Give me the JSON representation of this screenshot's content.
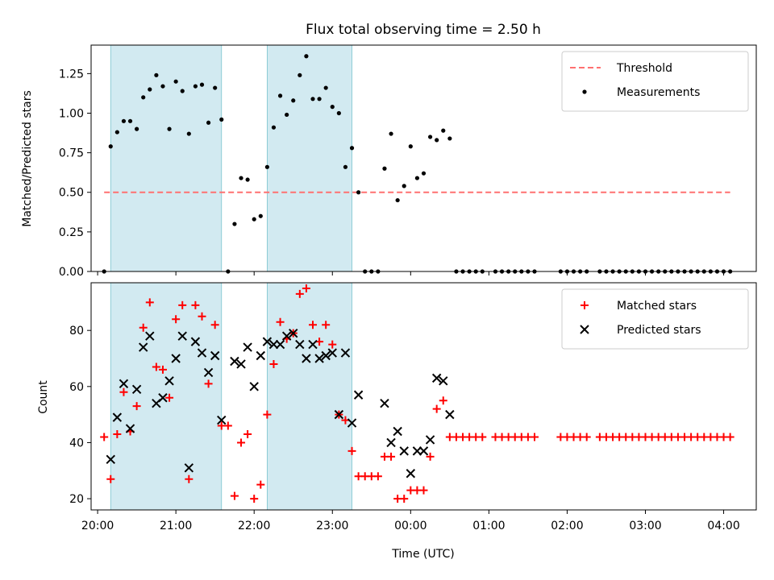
{
  "chart_data": {
    "title": "Flux total observing time = 2.50 h",
    "xlabel": "Time (UTC)",
    "x_ticks": [
      "20:00",
      "21:00",
      "22:00",
      "23:00",
      "00:00",
      "01:00",
      "02:00",
      "03:00",
      "04:00"
    ],
    "x_range": [
      "19:55",
      "04:25"
    ],
    "shaded_intervals": [
      [
        "20:10",
        "21:35"
      ],
      [
        "22:10",
        "23:15"
      ]
    ],
    "shade_color": "#add8e6",
    "panels": [
      {
        "type": "scatter",
        "ylabel": "Matched/Predicted stars",
        "ylim": [
          0,
          1.43
        ],
        "y_ticks": [
          "0.00",
          "0.25",
          "0.50",
          "0.75",
          "1.00",
          "1.25"
        ],
        "legend_position": "top-right",
        "threshold": {
          "name": "Threshold",
          "y": 0.5,
          "x": [
            "20:05",
            "04:05"
          ],
          "color": "#ff7070",
          "style": "dashed"
        },
        "series": [
          {
            "name": "Measurements",
            "marker": "dot",
            "color": "#000000",
            "points": [
              [
                "20:05",
                0.0
              ],
              [
                "20:10",
                0.79
              ],
              [
                "20:15",
                0.88
              ],
              [
                "20:20",
                0.95
              ],
              [
                "20:25",
                0.95
              ],
              [
                "20:30",
                0.9
              ],
              [
                "20:35",
                1.1
              ],
              [
                "20:40",
                1.15
              ],
              [
                "20:45",
                1.24
              ],
              [
                "20:50",
                1.17
              ],
              [
                "20:55",
                0.9
              ],
              [
                "21:00",
                1.2
              ],
              [
                "21:05",
                1.14
              ],
              [
                "21:10",
                0.87
              ],
              [
                "21:15",
                1.17
              ],
              [
                "21:20",
                1.18
              ],
              [
                "21:25",
                0.94
              ],
              [
                "21:30",
                1.16
              ],
              [
                "21:35",
                0.96
              ],
              [
                "21:40",
                0.0
              ],
              [
                "21:45",
                0.3
              ],
              [
                "21:50",
                0.59
              ],
              [
                "21:55",
                0.58
              ],
              [
                "22:00",
                0.33
              ],
              [
                "22:05",
                0.35
              ],
              [
                "22:10",
                0.66
              ],
              [
                "22:15",
                0.91
              ],
              [
                "22:20",
                1.11
              ],
              [
                "22:25",
                0.99
              ],
              [
                "22:30",
                1.08
              ],
              [
                "22:35",
                1.24
              ],
              [
                "22:40",
                1.36
              ],
              [
                "22:45",
                1.09
              ],
              [
                "22:50",
                1.09
              ],
              [
                "22:55",
                1.16
              ],
              [
                "23:00",
                1.04
              ],
              [
                "23:05",
                1.0
              ],
              [
                "23:10",
                0.66
              ],
              [
                "23:15",
                0.78
              ],
              [
                "23:20",
                0.5
              ],
              [
                "23:25",
                0.0
              ],
              [
                "23:30",
                0.0
              ],
              [
                "23:35",
                0.0
              ],
              [
                "23:40",
                0.65
              ],
              [
                "23:45",
                0.87
              ],
              [
                "23:50",
                0.45
              ],
              [
                "23:55",
                0.54
              ],
              [
                "00:00",
                0.79
              ],
              [
                "00:05",
                0.59
              ],
              [
                "00:10",
                0.62
              ],
              [
                "00:15",
                0.85
              ],
              [
                "00:20",
                0.83
              ],
              [
                "00:25",
                0.89
              ],
              [
                "00:30",
                0.84
              ],
              [
                "00:35",
                0.0
              ],
              [
                "00:40",
                0.0
              ],
              [
                "00:45",
                0.0
              ],
              [
                "00:50",
                0.0
              ],
              [
                "00:55",
                0.0
              ],
              [
                "01:05",
                0.0
              ],
              [
                "01:10",
                0.0
              ],
              [
                "01:15",
                0.0
              ],
              [
                "01:20",
                0.0
              ],
              [
                "01:25",
                0.0
              ],
              [
                "01:30",
                0.0
              ],
              [
                "01:35",
                0.0
              ],
              [
                "01:55",
                0.0
              ],
              [
                "02:00",
                0.0
              ],
              [
                "02:05",
                0.0
              ],
              [
                "02:10",
                0.0
              ],
              [
                "02:15",
                0.0
              ],
              [
                "02:25",
                0.0
              ],
              [
                "02:30",
                0.0
              ],
              [
                "02:35",
                0.0
              ],
              [
                "02:40",
                0.0
              ],
              [
                "02:45",
                0.0
              ],
              [
                "02:50",
                0.0
              ],
              [
                "02:55",
                0.0
              ],
              [
                "03:00",
                0.0
              ],
              [
                "03:05",
                0.0
              ],
              [
                "03:10",
                0.0
              ],
              [
                "03:15",
                0.0
              ],
              [
                "03:20",
                0.0
              ],
              [
                "03:25",
                0.0
              ],
              [
                "03:30",
                0.0
              ],
              [
                "03:35",
                0.0
              ],
              [
                "03:40",
                0.0
              ],
              [
                "03:45",
                0.0
              ],
              [
                "03:50",
                0.0
              ],
              [
                "03:55",
                0.0
              ],
              [
                "04:00",
                0.0
              ],
              [
                "04:05",
                0.0
              ]
            ]
          }
        ]
      },
      {
        "type": "scatter",
        "ylabel": "Count",
        "ylim": [
          16,
          97
        ],
        "y_ticks": [
          "20",
          "40",
          "60",
          "80"
        ],
        "legend_position": "top-right",
        "series": [
          {
            "name": "Matched stars",
            "marker": "plus",
            "color": "#ff0000",
            "points": [
              [
                "20:05",
                42
              ],
              [
                "20:10",
                27
              ],
              [
                "20:15",
                43
              ],
              [
                "20:20",
                58
              ],
              [
                "20:25",
                44
              ],
              [
                "20:30",
                53
              ],
              [
                "20:35",
                81
              ],
              [
                "20:40",
                90
              ],
              [
                "20:45",
                67
              ],
              [
                "20:50",
                66
              ],
              [
                "20:55",
                56
              ],
              [
                "21:00",
                84
              ],
              [
                "21:05",
                89
              ],
              [
                "21:10",
                27
              ],
              [
                "21:15",
                89
              ],
              [
                "21:20",
                85
              ],
              [
                "21:25",
                61
              ],
              [
                "21:30",
                82
              ],
              [
                "21:35",
                46
              ],
              [
                "21:40",
                46
              ],
              [
                "21:45",
                21
              ],
              [
                "21:50",
                40
              ],
              [
                "21:55",
                43
              ],
              [
                "22:00",
                20
              ],
              [
                "22:05",
                25
              ],
              [
                "22:10",
                50
              ],
              [
                "22:15",
                68
              ],
              [
                "22:20",
                83
              ],
              [
                "22:25",
                77
              ],
              [
                "22:30",
                79
              ],
              [
                "22:35",
                93
              ],
              [
                "22:40",
                95
              ],
              [
                "22:45",
                82
              ],
              [
                "22:50",
                76
              ],
              [
                "22:55",
                82
              ],
              [
                "23:00",
                75
              ],
              [
                "23:05",
                50
              ],
              [
                "23:10",
                48
              ],
              [
                "23:15",
                37
              ],
              [
                "23:20",
                28
              ],
              [
                "23:25",
                28
              ],
              [
                "23:30",
                28
              ],
              [
                "23:35",
                28
              ],
              [
                "23:40",
                35
              ],
              [
                "23:45",
                35
              ],
              [
                "23:50",
                20
              ],
              [
                "23:55",
                20
              ],
              [
                "00:00",
                23
              ],
              [
                "00:05",
                23
              ],
              [
                "00:10",
                23
              ],
              [
                "00:15",
                35
              ],
              [
                "00:20",
                52
              ],
              [
                "00:25",
                55
              ],
              [
                "00:30",
                42
              ],
              [
                "00:35",
                42
              ],
              [
                "00:40",
                42
              ],
              [
                "00:45",
                42
              ],
              [
                "00:50",
                42
              ],
              [
                "00:55",
                42
              ],
              [
                "01:05",
                42
              ],
              [
                "01:10",
                42
              ],
              [
                "01:15",
                42
              ],
              [
                "01:20",
                42
              ],
              [
                "01:25",
                42
              ],
              [
                "01:30",
                42
              ],
              [
                "01:35",
                42
              ],
              [
                "01:55",
                42
              ],
              [
                "02:00",
                42
              ],
              [
                "02:05",
                42
              ],
              [
                "02:10",
                42
              ],
              [
                "02:15",
                42
              ],
              [
                "02:25",
                42
              ],
              [
                "02:30",
                42
              ],
              [
                "02:35",
                42
              ],
              [
                "02:40",
                42
              ],
              [
                "02:45",
                42
              ],
              [
                "02:50",
                42
              ],
              [
                "02:55",
                42
              ],
              [
                "03:00",
                42
              ],
              [
                "03:05",
                42
              ],
              [
                "03:10",
                42
              ],
              [
                "03:15",
                42
              ],
              [
                "03:20",
                42
              ],
              [
                "03:25",
                42
              ],
              [
                "03:30",
                42
              ],
              [
                "03:35",
                42
              ],
              [
                "03:40",
                42
              ],
              [
                "03:45",
                42
              ],
              [
                "03:50",
                42
              ],
              [
                "03:55",
                42
              ],
              [
                "04:00",
                42
              ],
              [
                "04:05",
                42
              ]
            ]
          },
          {
            "name": "Predicted stars",
            "marker": "x",
            "color": "#000000",
            "points": [
              [
                "20:10",
                34
              ],
              [
                "20:15",
                49
              ],
              [
                "20:20",
                61
              ],
              [
                "20:25",
                45
              ],
              [
                "20:30",
                59
              ],
              [
                "20:35",
                74
              ],
              [
                "20:40",
                78
              ],
              [
                "20:45",
                54
              ],
              [
                "20:50",
                56
              ],
              [
                "20:55",
                62
              ],
              [
                "21:00",
                70
              ],
              [
                "21:05",
                78
              ],
              [
                "21:10",
                31
              ],
              [
                "21:15",
                76
              ],
              [
                "21:20",
                72
              ],
              [
                "21:25",
                65
              ],
              [
                "21:30",
                71
              ],
              [
                "21:35",
                48
              ],
              [
                "21:45",
                69
              ],
              [
                "21:50",
                68
              ],
              [
                "21:55",
                74
              ],
              [
                "22:00",
                60
              ],
              [
                "22:05",
                71
              ],
              [
                "22:10",
                76
              ],
              [
                "22:15",
                75
              ],
              [
                "22:20",
                75
              ],
              [
                "22:25",
                78
              ],
              [
                "22:30",
                79
              ],
              [
                "22:35",
                75
              ],
              [
                "22:40",
                70
              ],
              [
                "22:45",
                75
              ],
              [
                "22:50",
                70
              ],
              [
                "22:55",
                71
              ],
              [
                "23:00",
                72
              ],
              [
                "23:05",
                50
              ],
              [
                "23:10",
                72
              ],
              [
                "23:15",
                47
              ],
              [
                "23:20",
                57
              ],
              [
                "23:40",
                54
              ],
              [
                "23:45",
                40
              ],
              [
                "23:50",
                44
              ],
              [
                "23:55",
                37
              ],
              [
                "00:00",
                29
              ],
              [
                "00:05",
                37
              ],
              [
                "00:10",
                37
              ],
              [
                "00:15",
                41
              ],
              [
                "00:20",
                63
              ],
              [
                "00:25",
                62
              ],
              [
                "00:30",
                50
              ]
            ]
          }
        ]
      }
    ]
  }
}
